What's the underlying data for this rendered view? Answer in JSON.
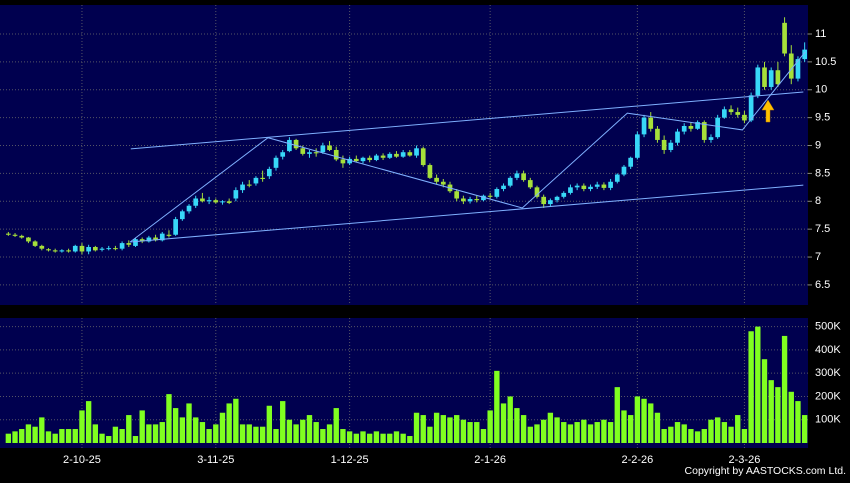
{
  "chart_data": {
    "type": "candlestick",
    "categories": [
      null,
      null,
      null,
      null,
      null,
      null,
      null,
      null,
      null,
      null,
      null,
      "2-10-25",
      null,
      null,
      null,
      null,
      null,
      null,
      null,
      null,
      null,
      null,
      null,
      null,
      null,
      null,
      null,
      null,
      null,
      null,
      null,
      "3-11-25",
      null,
      null,
      null,
      null,
      null,
      null,
      null,
      null,
      null,
      null,
      null,
      null,
      null,
      null,
      null,
      null,
      null,
      null,
      null,
      "1-12-25",
      null,
      null,
      null,
      null,
      null,
      null,
      null,
      null,
      null,
      null,
      null,
      null,
      null,
      null,
      null,
      null,
      null,
      null,
      null,
      null,
      "2-1-26",
      null,
      null,
      null,
      null,
      null,
      null,
      null,
      null,
      null,
      null,
      null,
      null,
      null,
      null,
      null,
      null,
      null,
      null,
      null,
      null,
      null,
      "2-2-26",
      null,
      null,
      null,
      null,
      null,
      null,
      null,
      null,
      null,
      null,
      null,
      null,
      null,
      null,
      null,
      "2-3-26",
      null,
      null,
      null,
      null,
      null,
      null,
      null,
      null,
      null
    ],
    "ohlc": [
      [
        7.42,
        7.45,
        7.38,
        7.4
      ],
      [
        7.4,
        7.43,
        7.36,
        7.38
      ],
      [
        7.38,
        7.4,
        7.33,
        7.35
      ],
      [
        7.35,
        7.36,
        7.25,
        7.28
      ],
      [
        7.28,
        7.3,
        7.18,
        7.2
      ],
      [
        7.2,
        7.22,
        7.12,
        7.15
      ],
      [
        7.14,
        7.16,
        7.1,
        7.12
      ],
      [
        7.12,
        7.15,
        7.08,
        7.1
      ],
      [
        7.1,
        7.14,
        7.08,
        7.12
      ],
      [
        7.12,
        7.15,
        7.08,
        7.1
      ],
      [
        7.1,
        7.22,
        7.08,
        7.2
      ],
      [
        7.2,
        7.25,
        7.05,
        7.1
      ],
      [
        7.1,
        7.22,
        7.05,
        7.18
      ],
      [
        7.18,
        7.2,
        7.1,
        7.12
      ],
      [
        7.13,
        7.18,
        7.1,
        7.15
      ],
      [
        7.15,
        7.2,
        7.12,
        7.16
      ],
      [
        7.16,
        7.2,
        7.12,
        7.15
      ],
      [
        7.15,
        7.28,
        7.12,
        7.25
      ],
      [
        7.25,
        7.3,
        7.18,
        7.22
      ],
      [
        7.2,
        7.35,
        7.18,
        7.32
      ],
      [
        7.32,
        7.35,
        7.25,
        7.28
      ],
      [
        7.28,
        7.38,
        7.26,
        7.35
      ],
      [
        7.35,
        7.4,
        7.28,
        7.3
      ],
      [
        7.3,
        7.45,
        7.28,
        7.42
      ],
      [
        7.4,
        7.48,
        7.35,
        7.38
      ],
      [
        7.4,
        7.72,
        7.38,
        7.68
      ],
      [
        7.68,
        7.85,
        7.65,
        7.82
      ],
      [
        7.82,
        7.95,
        7.78,
        7.92
      ],
      [
        7.92,
        8.1,
        7.88,
        8.05
      ],
      [
        8.05,
        8.15,
        7.98,
        8.0
      ],
      [
        8.0,
        8.08,
        7.95,
        8.02
      ],
      [
        8.02,
        8.05,
        7.96,
        7.98
      ],
      [
        7.98,
        8.02,
        7.94,
        8.0
      ],
      [
        8.0,
        8.05,
        7.95,
        7.97
      ],
      [
        8.05,
        8.25,
        8.0,
        8.2
      ],
      [
        8.2,
        8.35,
        8.15,
        8.3
      ],
      [
        8.3,
        8.38,
        8.25,
        8.28
      ],
      [
        8.32,
        8.45,
        8.28,
        8.42
      ],
      [
        8.42,
        8.55,
        8.35,
        8.4
      ],
      [
        8.45,
        8.62,
        8.4,
        8.58
      ],
      [
        8.6,
        8.82,
        8.55,
        8.78
      ],
      [
        8.8,
        8.92,
        8.75,
        8.88
      ],
      [
        8.9,
        9.15,
        8.88,
        9.1
      ],
      [
        9.1,
        9.12,
        8.92,
        8.95
      ],
      [
        8.95,
        9.0,
        8.82,
        8.85
      ],
      [
        8.85,
        8.92,
        8.78,
        8.88
      ],
      [
        8.88,
        8.95,
        8.8,
        8.86
      ],
      [
        8.88,
        9.05,
        8.85,
        9.0
      ],
      [
        9.0,
        9.08,
        8.9,
        8.92
      ],
      [
        8.92,
        8.98,
        8.72,
        8.75
      ],
      [
        8.75,
        8.82,
        8.6,
        8.68
      ],
      [
        8.68,
        8.8,
        8.65,
        8.76
      ],
      [
        8.76,
        8.82,
        8.7,
        8.72
      ],
      [
        8.72,
        8.8,
        8.68,
        8.78
      ],
      [
        8.78,
        8.82,
        8.7,
        8.74
      ],
      [
        8.74,
        8.85,
        8.72,
        8.82
      ],
      [
        8.82,
        8.86,
        8.74,
        8.78
      ],
      [
        8.78,
        8.88,
        8.76,
        8.85
      ],
      [
        8.85,
        8.9,
        8.78,
        8.8
      ],
      [
        8.8,
        8.92,
        8.78,
        8.88
      ],
      [
        8.88,
        8.92,
        8.8,
        8.82
      ],
      [
        8.82,
        9.0,
        8.78,
        8.95
      ],
      [
        8.95,
        8.98,
        8.62,
        8.65
      ],
      [
        8.65,
        8.68,
        8.4,
        8.42
      ],
      [
        8.42,
        8.48,
        8.3,
        8.35
      ],
      [
        8.35,
        8.4,
        8.25,
        8.3
      ],
      [
        8.3,
        8.35,
        8.15,
        8.18
      ],
      [
        8.18,
        8.22,
        8.0,
        8.05
      ],
      [
        8.05,
        8.1,
        7.95,
        8.0
      ],
      [
        8.0,
        8.08,
        7.96,
        8.04
      ],
      [
        8.04,
        8.1,
        7.98,
        8.02
      ],
      [
        8.02,
        8.12,
        8.0,
        8.1
      ],
      [
        8.1,
        8.15,
        8.04,
        8.08
      ],
      [
        8.08,
        8.25,
        8.05,
        8.22
      ],
      [
        8.22,
        8.32,
        8.18,
        8.28
      ],
      [
        8.28,
        8.45,
        8.25,
        8.42
      ],
      [
        8.42,
        8.55,
        8.38,
        8.5
      ],
      [
        8.5,
        8.55,
        8.35,
        8.38
      ],
      [
        8.38,
        8.42,
        8.22,
        8.25
      ],
      [
        8.25,
        8.28,
        8.05,
        8.08
      ],
      [
        8.08,
        8.12,
        7.88,
        7.95
      ],
      [
        7.95,
        8.05,
        7.9,
        8.02
      ],
      [
        8.02,
        8.1,
        7.98,
        8.08
      ],
      [
        8.08,
        8.18,
        8.05,
        8.15
      ],
      [
        8.15,
        8.3,
        8.12,
        8.25
      ],
      [
        8.25,
        8.32,
        8.2,
        8.28
      ],
      [
        8.28,
        8.32,
        8.18,
        8.22
      ],
      [
        8.22,
        8.3,
        8.18,
        8.26
      ],
      [
        8.26,
        8.35,
        8.22,
        8.3
      ],
      [
        8.3,
        8.34,
        8.2,
        8.24
      ],
      [
        8.24,
        8.4,
        8.2,
        8.35
      ],
      [
        8.35,
        8.5,
        8.32,
        8.48
      ],
      [
        8.48,
        8.65,
        8.45,
        8.62
      ],
      [
        8.62,
        8.8,
        8.58,
        8.78
      ],
      [
        8.78,
        9.25,
        8.75,
        9.2
      ],
      [
        9.2,
        9.55,
        9.15,
        9.5
      ],
      [
        9.5,
        9.6,
        9.25,
        9.3
      ],
      [
        9.3,
        9.35,
        9.05,
        9.1
      ],
      [
        9.1,
        9.18,
        8.85,
        8.92
      ],
      [
        8.92,
        9.1,
        8.88,
        9.05
      ],
      [
        9.05,
        9.3,
        9.0,
        9.25
      ],
      [
        9.25,
        9.4,
        9.2,
        9.35
      ],
      [
        9.35,
        9.42,
        9.25,
        9.3
      ],
      [
        9.3,
        9.45,
        9.28,
        9.42
      ],
      [
        9.42,
        9.45,
        9.05,
        9.1
      ],
      [
        9.1,
        9.2,
        9.05,
        9.15
      ],
      [
        9.15,
        9.55,
        9.12,
        9.5
      ],
      [
        9.5,
        9.7,
        9.48,
        9.65
      ],
      [
        9.65,
        9.72,
        9.55,
        9.6
      ],
      [
        9.6,
        9.68,
        9.5,
        9.55
      ],
      [
        9.55,
        9.62,
        9.4,
        9.45
      ],
      [
        9.45,
        9.95,
        9.42,
        9.9
      ],
      [
        9.9,
        10.45,
        9.85,
        10.4
      ],
      [
        10.4,
        10.5,
        10.0,
        10.05
      ],
      [
        10.05,
        10.4,
        10.0,
        10.35
      ],
      [
        10.35,
        10.5,
        10.05,
        10.1
      ],
      [
        11.2,
        11.3,
        10.6,
        10.65
      ],
      [
        10.65,
        10.8,
        10.1,
        10.2
      ],
      [
        10.2,
        10.6,
        10.15,
        10.55
      ],
      [
        10.55,
        10.85,
        10.5,
        10.72
      ]
    ],
    "up_color": "#38d8f8",
    "down_color": "#a6e03a",
    "ylim": [
      6.14,
      11.52
    ],
    "yticks": [
      6.5,
      7,
      7.5,
      8,
      8.5,
      9,
      9.5,
      10,
      10.5,
      11
    ],
    "volume": {
      "color": "#80ff20",
      "values": [
        40000,
        50000,
        60000,
        80000,
        70000,
        110000,
        50000,
        40000,
        60000,
        60000,
        60000,
        140000,
        180000,
        80000,
        40000,
        30000,
        70000,
        60000,
        120000,
        30000,
        140000,
        80000,
        80000,
        90000,
        210000,
        150000,
        110000,
        170000,
        110000,
        90000,
        60000,
        80000,
        130000,
        170000,
        190000,
        80000,
        80000,
        70000,
        70000,
        160000,
        60000,
        180000,
        100000,
        80000,
        100000,
        120000,
        90000,
        60000,
        80000,
        150000,
        60000,
        50000,
        40000,
        50000,
        40000,
        50000,
        40000,
        40000,
        50000,
        40000,
        30000,
        130000,
        120000,
        70000,
        130000,
        120000,
        110000,
        120000,
        100000,
        90000,
        90000,
        60000,
        140000,
        310000,
        170000,
        200000,
        150000,
        120000,
        70000,
        80000,
        100000,
        130000,
        110000,
        90000,
        80000,
        90000,
        100000,
        80000,
        90000,
        100000,
        90000,
        240000,
        140000,
        120000,
        200000,
        190000,
        170000,
        130000,
        60000,
        70000,
        90000,
        80000,
        60000,
        50000,
        60000,
        100000,
        110000,
        90000,
        70000,
        120000,
        60000,
        480000,
        500000,
        360000,
        270000,
        240000,
        460000,
        220000,
        180000,
        120000
      ],
      "ylim": [
        0,
        537000
      ],
      "yticks": [
        {
          "value": 100000,
          "label": "100K"
        },
        {
          "value": 200000,
          "label": "200K"
        },
        {
          "value": 300000,
          "label": "300K"
        },
        {
          "value": 400000,
          "label": "400K"
        },
        {
          "value": 500000,
          "label": "500K"
        }
      ]
    },
    "trendlines": {
      "color": "#7fb0ff",
      "lines": [
        [
          18.3,
          8.94,
          118.8,
          9.96
        ],
        [
          18.2,
          7.27,
          118.8,
          8.29
        ]
      ]
    },
    "zigzag": {
      "x": [
        18.2,
        38.8,
        76.8,
        92.5,
        109.7,
        119.1
      ],
      "y": [
        7.27,
        9.14,
        7.88,
        9.58,
        9.28,
        10.68
      ]
    },
    "grid": true,
    "copyright": "Copyright by AASTOCKS.com Ltd."
  }
}
